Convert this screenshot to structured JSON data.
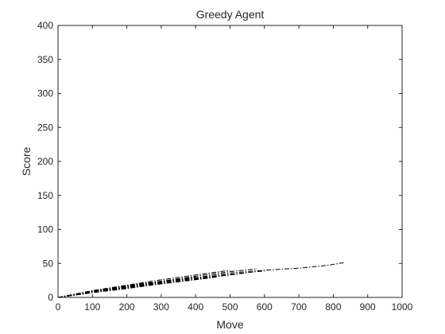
{
  "chart_data": {
    "type": "line",
    "title": "Greedy Agent",
    "xlabel": "Move",
    "ylabel": "Score",
    "xlim": [
      0,
      1000
    ],
    "ylim": [
      0,
      400
    ],
    "xticks": [
      "0",
      "100",
      "200",
      "300",
      "400",
      "500",
      "600",
      "700",
      "800",
      "900",
      "1000"
    ],
    "yticks": [
      "0",
      "50",
      "100",
      "150",
      "200",
      "250",
      "300",
      "350",
      "400"
    ],
    "grid": false,
    "legend": "none",
    "line_color": "#000000",
    "line_style": "dash-dot",
    "series": [
      {
        "x": [
          0,
          100,
          200,
          300,
          400,
          500,
          600,
          700,
          780,
          830
        ],
        "values": [
          0,
          8,
          16,
          23,
          29,
          36,
          40,
          43,
          47,
          51
        ]
      },
      {
        "x": [
          0,
          100,
          200,
          300,
          400,
          500,
          580
        ],
        "values": [
          0,
          9,
          17,
          24,
          31,
          38,
          42
        ]
      },
      {
        "x": [
          0,
          100,
          200,
          300,
          400,
          500,
          560
        ],
        "values": [
          0,
          7,
          14,
          20,
          27,
          33,
          37
        ]
      },
      {
        "x": [
          0,
          100,
          200,
          300,
          400,
          500,
          600
        ],
        "values": [
          0,
          8,
          15,
          22,
          28,
          34,
          39
        ]
      },
      {
        "x": [
          0,
          100,
          200,
          300,
          400,
          500
        ],
        "values": [
          0,
          10,
          18,
          26,
          33,
          40
        ]
      },
      {
        "x": [
          0,
          100,
          200,
          300,
          400,
          460
        ],
        "values": [
          0,
          7,
          13,
          20,
          26,
          30
        ]
      },
      {
        "x": [
          0,
          100,
          200,
          300,
          400
        ],
        "values": [
          0,
          9,
          16,
          23,
          30
        ]
      },
      {
        "x": [
          0,
          100,
          200,
          300,
          350
        ],
        "values": [
          0,
          8,
          15,
          21,
          25
        ]
      },
      {
        "x": [
          0,
          100,
          200,
          270
        ],
        "values": [
          0,
          9,
          17,
          22
        ]
      },
      {
        "x": [
          0,
          100,
          200,
          250
        ],
        "values": [
          0,
          7,
          14,
          18
        ]
      },
      {
        "x": [
          0,
          100,
          180
        ],
        "values": [
          0,
          8,
          15
        ]
      },
      {
        "x": [
          0,
          100,
          150
        ],
        "values": [
          0,
          9,
          13
        ]
      },
      {
        "x": [
          0,
          60,
          120
        ],
        "values": [
          0,
          5,
          10
        ]
      },
      {
        "x": [
          0,
          50,
          90
        ],
        "values": [
          0,
          4,
          8
        ]
      },
      {
        "x": [
          0,
          40,
          70
        ],
        "values": [
          0,
          3,
          6
        ]
      },
      {
        "x": [
          0,
          30,
          50
        ],
        "values": [
          0,
          2,
          4
        ]
      }
    ]
  }
}
